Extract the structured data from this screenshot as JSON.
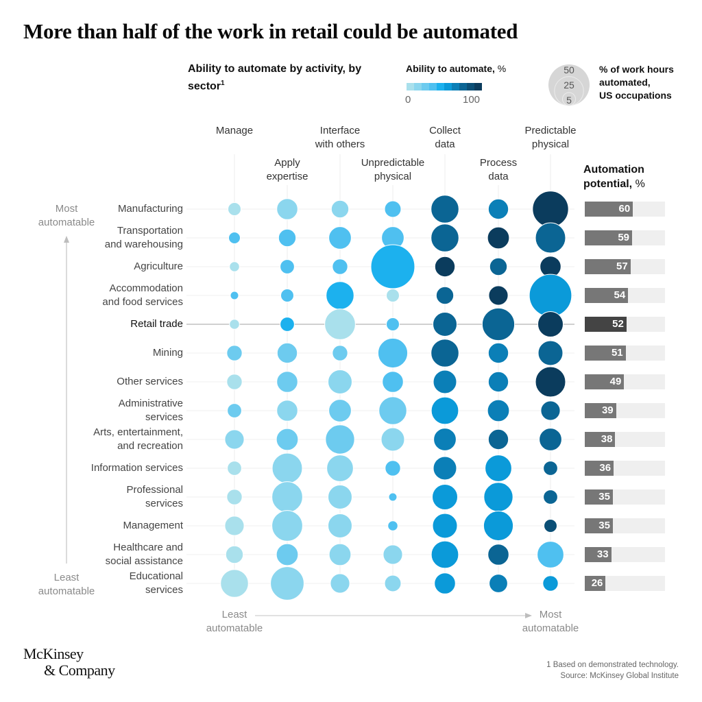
{
  "title": "More than half of the work in retail could be automated",
  "subtitle": {
    "line": "Ability to automate by activity, by sector",
    "footnote_mark": "1"
  },
  "color_legend": {
    "title": "Ability to automate,",
    "unit": "%",
    "min_label": "0",
    "max_label": "100",
    "colors": [
      "#a9e0ec",
      "#8bd6ee",
      "#6dcbef",
      "#4fc0f0",
      "#1cb1ee",
      "#0b9ad9",
      "#0b7fb7",
      "#0b6594",
      "#0b4f76",
      "#0b3c5d"
    ]
  },
  "size_legend": {
    "values": [
      "50",
      "25",
      "5"
    ],
    "text_line1": "% of work hours",
    "text_line2": "automated,",
    "text_line3": "US occupations"
  },
  "automation_potential_header": {
    "title": "Automation",
    "line2": "potential,",
    "unit": "%"
  },
  "axis": {
    "y_top": [
      "Most",
      "automatable"
    ],
    "y_bottom": [
      "Least",
      "automatable"
    ],
    "x_left": [
      "Least",
      "automatable"
    ],
    "x_right": [
      "Most",
      "automatable"
    ]
  },
  "chart_data": {
    "type": "bubble-matrix",
    "title": "More than half of the work in retail could be automated",
    "subtitle": "Ability to automate by activity, by sector",
    "size_metric": "% of work hours automated, US occupations",
    "color_metric": "Ability to automate, % (0-100)",
    "activities": [
      [
        "Manage"
      ],
      [
        "Apply",
        "expertise"
      ],
      [
        "Interface",
        "with others"
      ],
      [
        "Unpredictable",
        "physical"
      ],
      [
        "Collect",
        "data"
      ],
      [
        "Process",
        "data"
      ],
      [
        "Predictable",
        "physical"
      ]
    ],
    "sectors": [
      {
        "name": [
          "Manufacturing"
        ],
        "potential": 60,
        "time_share": [
          5,
          13,
          9,
          8,
          23,
          12,
          38
        ],
        "ability": [
          5,
          15,
          15,
          35,
          75,
          65,
          95
        ]
      },
      {
        "name": [
          "Transportation",
          "and warehousing"
        ],
        "potential": 59,
        "time_share": [
          4,
          9,
          15,
          15,
          23,
          14,
          27
        ],
        "ability": [
          35,
          35,
          35,
          35,
          75,
          95,
          75
        ]
      },
      {
        "name": [
          "Agriculture"
        ],
        "potential": 57,
        "time_share": [
          3,
          6,
          7,
          57,
          12,
          9,
          13
        ],
        "ability": [
          5,
          35,
          35,
          45,
          95,
          75,
          95
        ]
      },
      {
        "name": [
          "Accommodation",
          "and food services"
        ],
        "potential": 54,
        "time_share": [
          2,
          5,
          23,
          5,
          9,
          11,
          53
        ],
        "ability": [
          35,
          35,
          45,
          5,
          75,
          95,
          55
        ]
      },
      {
        "name": [
          "Retail trade"
        ],
        "potential": 52,
        "highlight": true,
        "time_share": [
          3,
          6,
          28,
          5,
          17,
          31,
          19
        ],
        "ability": [
          5,
          45,
          5,
          35,
          75,
          75,
          95
        ]
      },
      {
        "name": [
          "Mining"
        ],
        "potential": 51,
        "time_share": [
          7,
          12,
          7,
          26,
          23,
          12,
          18
        ],
        "ability": [
          25,
          25,
          25,
          35,
          75,
          65,
          75
        ]
      },
      {
        "name": [
          "Other services"
        ],
        "potential": 49,
        "time_share": [
          7,
          13,
          17,
          13,
          16,
          12,
          27
        ],
        "ability": [
          5,
          25,
          15,
          35,
          65,
          65,
          95
        ]
      },
      {
        "name": [
          "Administrative",
          "services"
        ],
        "potential": 39,
        "time_share": [
          6,
          13,
          15,
          23,
          22,
          14,
          11
        ],
        "ability": [
          25,
          15,
          25,
          25,
          55,
          65,
          75
        ]
      },
      {
        "name": [
          "Arts, entertainment,",
          "and recreation"
        ],
        "potential": 38,
        "time_share": [
          11,
          14,
          25,
          16,
          15,
          12,
          15
        ],
        "ability": [
          15,
          25,
          25,
          15,
          65,
          75,
          75
        ]
      },
      {
        "name": [
          "Information services"
        ],
        "potential": 36,
        "time_share": [
          6,
          27,
          21,
          7,
          16,
          21,
          6
        ],
        "ability": [
          5,
          15,
          15,
          35,
          65,
          55,
          75
        ]
      },
      {
        "name": [
          "Professional",
          "services"
        ],
        "potential": 35,
        "time_share": [
          7,
          28,
          17,
          2,
          19,
          25,
          6
        ],
        "ability": [
          5,
          15,
          15,
          35,
          55,
          55,
          75
        ]
      },
      {
        "name": [
          "Management"
        ],
        "potential": 35,
        "time_share": [
          11,
          28,
          17,
          3,
          18,
          26,
          5
        ],
        "ability": [
          5,
          15,
          15,
          35,
          55,
          55,
          85
        ]
      },
      {
        "name": [
          "Healthcare and",
          "social assistance"
        ],
        "potential": 33,
        "time_share": [
          9,
          14,
          14,
          11,
          22,
          13,
          21
        ],
        "ability": [
          5,
          25,
          15,
          15,
          55,
          75,
          35
        ]
      },
      {
        "name": [
          "Educational",
          "services"
        ],
        "potential": 26,
        "time_share": [
          23,
          33,
          11,
          8,
          13,
          10,
          7
        ],
        "ability": [
          5,
          15,
          15,
          15,
          55,
          65,
          55
        ]
      }
    ],
    "potential_range": [
      0,
      100
    ],
    "size_legend_values": [
      50,
      25,
      5
    ],
    "color_range": [
      0,
      100
    ]
  },
  "footer": {
    "logo_line1": "McKinsey",
    "logo_line2": "& Company",
    "footnote": "1 Based on demonstrated technology.",
    "source": "Source: McKinsey Global Institute"
  }
}
